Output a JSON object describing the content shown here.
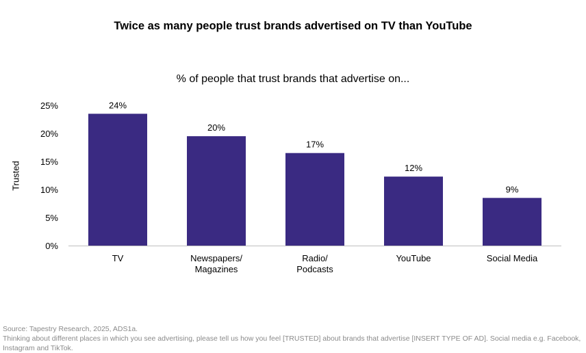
{
  "title": "Twice as many people trust brands advertised on TV than YouTube",
  "chart_data": {
    "type": "bar",
    "title": "% of people that trust brands that advertise on...",
    "categories": [
      [
        "TV"
      ],
      [
        "Newspapers/",
        "Magazines"
      ],
      [
        "Radio/",
        "Podcasts"
      ],
      [
        "YouTube"
      ],
      [
        "Social Media"
      ]
    ],
    "values": [
      23.5,
      19.5,
      16.5,
      12.3,
      8.5
    ],
    "data_labels": [
      "24%",
      "20%",
      "17%",
      "12%",
      "9%"
    ],
    "yticks": [
      "0%",
      "5%",
      "10%",
      "15%",
      "20%",
      "25%"
    ],
    "ylim": [
      0,
      25
    ],
    "ylabel": "Trusted",
    "xlabel": "",
    "grid": false,
    "bar_color": "#3a2a82"
  },
  "source": {
    "line1": "Source: Tapestry Research, 2025, ADS1a.",
    "line2": "Thinking about different places in which you see advertising, please tell us how you feel [TRUSTED] about brands that advertise [INSERT TYPE OF AD]. Social media e.g.  Facebook, Instagram and TikTok."
  }
}
